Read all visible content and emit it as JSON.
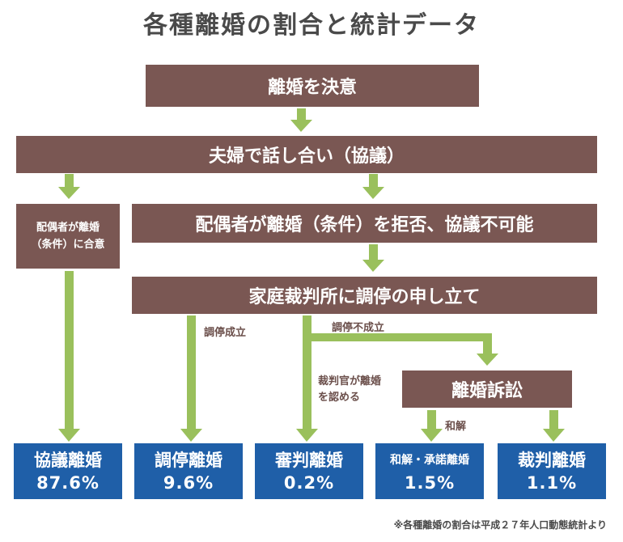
{
  "title": "各種離婚の割合と統計データ",
  "boxes": {
    "decide": "離婚を決意",
    "discuss": "夫婦で話し合い（協議）",
    "agree_line1": "配偶者が離婚",
    "agree_line2": "（条件）に合意",
    "refuse": "配偶者が離婚（条件）を拒否、協議不可能",
    "mediation": "家庭裁判所に調停の申し立て",
    "lawsuit": "離婚訴訟"
  },
  "labels": {
    "mediation_success": "調停成立",
    "mediation_fail": "調停不成立",
    "judge_line1": "裁判官が離婚",
    "judge_line2": "を認める",
    "settlement": "和解"
  },
  "results": [
    {
      "name": "協議離婚",
      "value": "87.6%"
    },
    {
      "name": "調停離婚",
      "value": "9.6%"
    },
    {
      "name": "審判離婚",
      "value": "0.2%"
    },
    {
      "name": "和解・承諾離婚",
      "value": "1.5%"
    },
    {
      "name": "裁判離婚",
      "value": "1.1%"
    }
  ],
  "note": "※各種離婚の割合は平成２７年人口動態統計より",
  "colors": {
    "process_box": "#7a5753",
    "result_box": "#1f5fa8",
    "arrow": "#9ac05c",
    "title_text": "#4a4a4a"
  }
}
